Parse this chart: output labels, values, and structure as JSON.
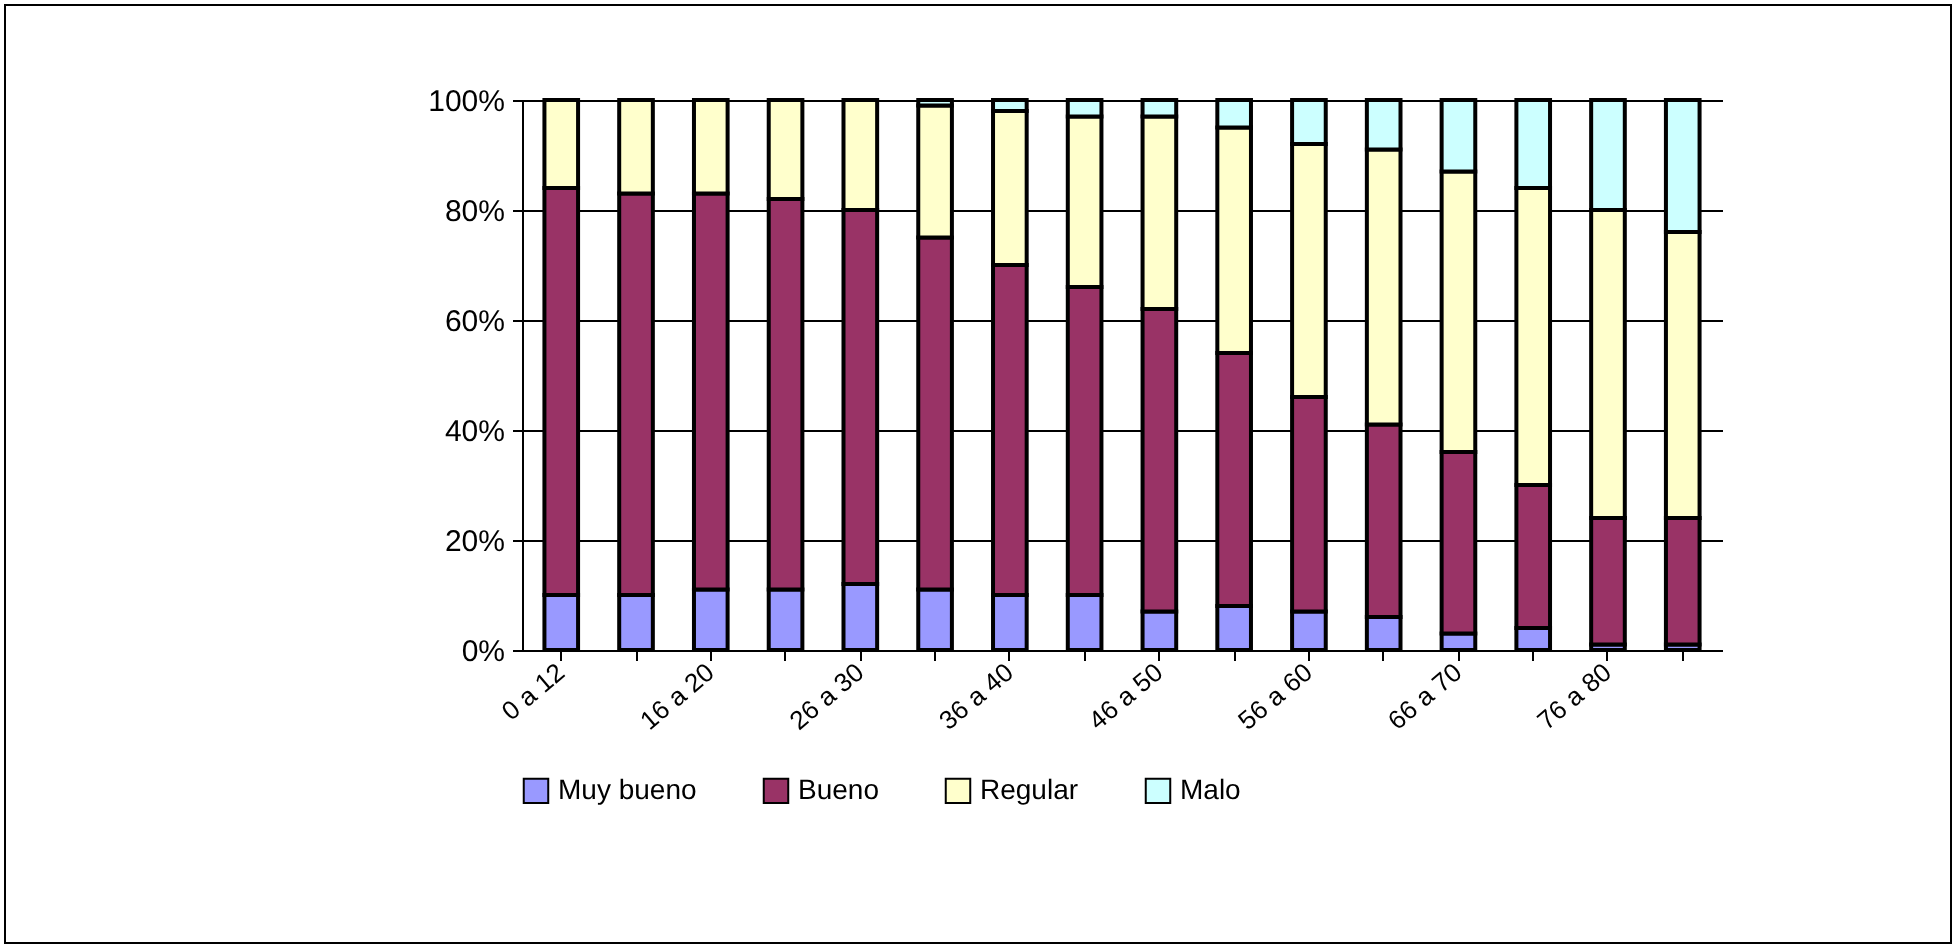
{
  "chart_data": {
    "type": "bar",
    "stacked": true,
    "categories": [
      "0 a 12",
      null,
      "16 a 20",
      null,
      "26 a 30",
      null,
      "36 a 40",
      null,
      "46 a 50",
      null,
      "56 a 60",
      null,
      "66 a 70",
      null,
      "76 a 80",
      null
    ],
    "series": [
      {
        "name": "Muy bueno",
        "color": "#9999ff",
        "values": [
          10,
          10,
          11,
          11,
          12,
          11,
          10,
          10,
          7,
          8,
          7,
          6,
          3,
          4,
          1,
          1
        ]
      },
      {
        "name": "Bueno",
        "color": "#993366",
        "values": [
          74,
          73,
          72,
          71,
          68,
          64,
          60,
          56,
          55,
          46,
          39,
          35,
          33,
          26,
          23,
          23
        ]
      },
      {
        "name": "Regular",
        "color": "#ffffcc",
        "values": [
          16,
          17,
          17,
          18,
          20,
          24,
          28,
          31,
          35,
          41,
          46,
          50,
          51,
          54,
          56,
          52
        ]
      },
      {
        "name": "Malo",
        "color": "#ccffff",
        "values": [
          0,
          0,
          0,
          0,
          0,
          1,
          2,
          3,
          3,
          5,
          8,
          9,
          13,
          16,
          20,
          24
        ]
      }
    ],
    "ylim": [
      0,
      100
    ],
    "yticks": [
      {
        "value": 0,
        "label": "0%"
      },
      {
        "value": 20,
        "label": "20%"
      },
      {
        "value": 40,
        "label": "40%"
      },
      {
        "value": 60,
        "label": "60%"
      },
      {
        "value": 80,
        "label": "80%"
      },
      {
        "value": 100,
        "label": "100%"
      }
    ],
    "grid": "y",
    "legend": "bottom"
  }
}
